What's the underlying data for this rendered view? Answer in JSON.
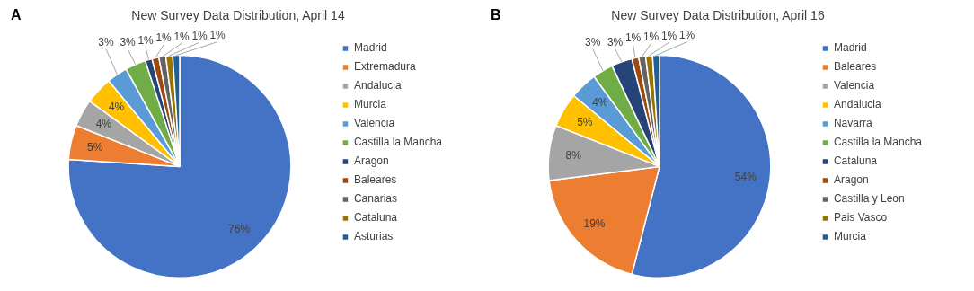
{
  "chart_data": [
    {
      "type": "pie",
      "title": "New Survey Data Distribution, April 14",
      "annotations": [
        "A"
      ],
      "legend": "right",
      "categories": [
        "Madrid",
        "Extremadura",
        "Andalucia",
        "Murcia",
        "Valencia",
        "Castilla la Mancha",
        "Aragon",
        "Baleares",
        "Canarias",
        "Cataluna",
        "Asturias"
      ],
      "values": [
        76,
        5,
        4,
        4,
        3,
        3,
        1,
        1,
        1,
        1,
        1
      ],
      "value_labels": [
        "76%",
        "5%",
        "4%",
        "4%",
        "3%",
        "3%",
        "1%",
        "1%",
        "1%",
        "1%",
        "1%"
      ],
      "colors": [
        "#4472c4",
        "#ed7d31",
        "#a5a5a5",
        "#ffc000",
        "#5b9bd5",
        "#70ad47",
        "#264478",
        "#9e480e",
        "#636363",
        "#997300",
        "#255e91"
      ]
    },
    {
      "type": "pie",
      "title": "New Survey Data Distribution, April 16",
      "annotations": [
        "B"
      ],
      "legend": "right",
      "categories": [
        "Madrid",
        "Baleares",
        "Valencia",
        "Andalucia",
        "Navarra",
        "Castilla la Mancha",
        "Cataluna",
        "Aragon",
        "Castilla y Leon",
        "Pais Vasco",
        "Murcia"
      ],
      "values": [
        54,
        19,
        8,
        5,
        4,
        3,
        3,
        1,
        1,
        1,
        1
      ],
      "value_labels": [
        "54%",
        "19%",
        "8%",
        "5%",
        "4%",
        "3%",
        "3%",
        "1%",
        "1%",
        "1%",
        "1%"
      ],
      "colors": [
        "#4472c4",
        "#ed7d31",
        "#a5a5a5",
        "#ffc000",
        "#5b9bd5",
        "#70ad47",
        "#264478",
        "#9e480e",
        "#636363",
        "#997300",
        "#255e91"
      ]
    }
  ]
}
